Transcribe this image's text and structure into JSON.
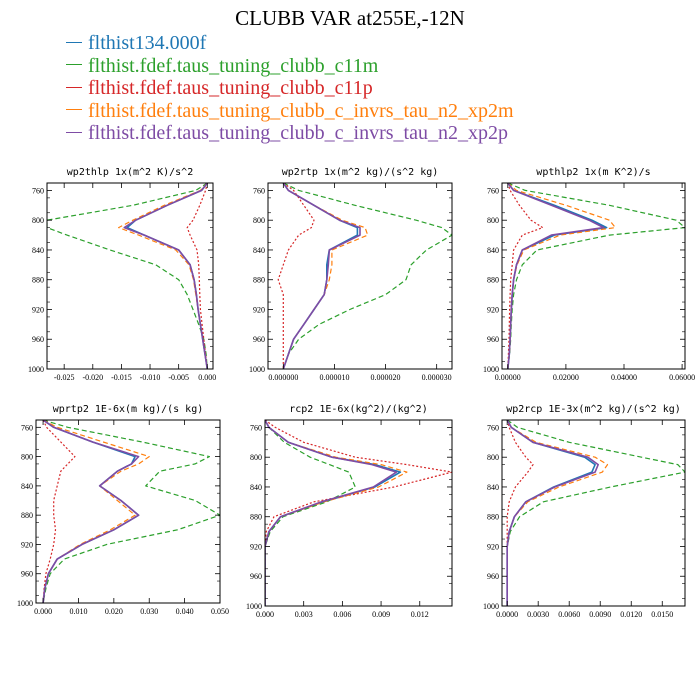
{
  "title": "CLUBB VAR at255E,-12N",
  "legend": [
    {
      "name": "flthist134.000f",
      "color": "#1f77b4"
    },
    {
      "name": "flthist.fdef.taus_tuning_clubb_c11m",
      "color": "#2ca02c"
    },
    {
      "name": "flthist.fdef.taus_tuning_clubb_c11p",
      "color": "#d62728"
    },
    {
      "name": "flthist.fdef.taus_tuning_clubb_c_invrs_tau_n2_xp2m",
      "color": "#ff7f0e"
    },
    {
      "name": "flthist.fdef.taus_tuning_clubb_c_invrs_tau_n2_xp2p",
      "color": "#7e4ca5"
    }
  ],
  "y_ticks": [
    "760",
    "800",
    "840",
    "880",
    "920",
    "960",
    "1000"
  ],
  "chart_data": [
    {
      "type": "line",
      "title": "wp2thlp  1x(m^2 K)/s^2",
      "xlim": [
        -0.028,
        0.001
      ],
      "ylim": [
        1000,
        750
      ],
      "y_reversed": true,
      "x_ticks": [
        -0.025,
        -0.02,
        -0.015,
        -0.01,
        -0.005,
        0.0
      ],
      "x_tick_labels": [
        "-0.025",
        "-0.020",
        "-0.015",
        "-0.010",
        "-0.005",
        "0.000"
      ],
      "y": [
        750,
        760,
        780,
        800,
        810,
        820,
        840,
        860,
        880,
        900,
        920,
        940,
        960,
        980,
        1000
      ],
      "series": [
        {
          "name": "flthist134.000f",
          "values": [
            0.0,
            -0.001,
            -0.007,
            -0.0125,
            -0.014,
            -0.011,
            -0.005,
            -0.003,
            -0.0023,
            -0.0019,
            -0.0016,
            -0.0012,
            -0.0008,
            -0.0004,
            0.0
          ]
        },
        {
          "name": "flthist.fdef.taus_tuning_clubb_c11m",
          "values": [
            0.0,
            -0.002,
            -0.013,
            -0.028,
            -0.028,
            -0.0245,
            -0.017,
            -0.009,
            -0.005,
            -0.0035,
            -0.0025,
            -0.0015,
            -0.0006,
            -0.0002,
            0.0
          ]
        },
        {
          "name": "flthist.fdef.taus_tuning_clubb_c11p",
          "values": [
            0.0,
            -0.0003,
            -0.0013,
            -0.0025,
            -0.0035,
            -0.003,
            -0.0018,
            -0.0015,
            -0.0014,
            -0.0013,
            -0.0012,
            -0.0009,
            -0.0006,
            -0.0003,
            0.0
          ]
        },
        {
          "name": "flthist.fdef.taus_tuning_clubb_c_invrs_tau_n2_xp2m",
          "values": [
            0.0,
            -0.0012,
            -0.0075,
            -0.013,
            -0.0155,
            -0.012,
            -0.0055,
            -0.0032,
            -0.0024,
            -0.002,
            -0.0016,
            -0.0012,
            -0.0008,
            -0.0004,
            0.0
          ]
        },
        {
          "name": "flthist.fdef.taus_tuning_clubb_c_invrs_tau_n2_xp2p",
          "values": [
            0.0,
            -0.001,
            -0.007,
            -0.0125,
            -0.0145,
            -0.011,
            -0.005,
            -0.003,
            -0.0023,
            -0.0019,
            -0.0016,
            -0.0012,
            -0.0008,
            -0.0004,
            0.0
          ]
        }
      ]
    },
    {
      "type": "line",
      "title": "wp2rtp  1x(m^2 kg)/(s^2 kg)",
      "xlim": [
        -3e-06,
        3.3e-05
      ],
      "ylim": [
        1000,
        750
      ],
      "y_reversed": true,
      "x_ticks": [
        0.0,
        1e-05,
        2e-05,
        3e-05
      ],
      "x_tick_labels": [
        "0.000000",
        "0.000010",
        "0.000020",
        "0.000030"
      ],
      "y": [
        750,
        760,
        780,
        800,
        810,
        820,
        840,
        860,
        880,
        900,
        920,
        940,
        960,
        980,
        1000
      ],
      "series": [
        {
          "name": "flthist134.000f",
          "values": [
            0.0,
            1e-06,
            6e-06,
            1.1e-05,
            1.45e-05,
            1.45e-05,
            9e-06,
            8.5e-06,
            8.5e-06,
            8e-06,
            6e-06,
            4e-06,
            2e-06,
            1e-06,
            0.0
          ]
        },
        {
          "name": "flthist.fdef.taus_tuning_clubb_c11m",
          "values": [
            0.0,
            3e-06,
            1.4e-05,
            2.6e-05,
            3.1e-05,
            3.3e-05,
            2.8e-05,
            2.5e-05,
            2.4e-05,
            2e-05,
            1.3e-05,
            7e-06,
            3e-06,
            1e-06,
            0.0
          ]
        },
        {
          "name": "flthist.fdef.taus_tuning_clubb_c11p",
          "values": [
            0.0,
            2e-06,
            4e-06,
            6e-06,
            5.5e-06,
            3e-06,
            1e-06,
            0.0,
            -1e-06,
            0.0,
            0.0,
            0.0,
            0.0,
            0.0,
            0.0
          ]
        },
        {
          "name": "flthist.fdef.taus_tuning_clubb_c_invrs_tau_n2_xp2m",
          "values": [
            0.0,
            1e-06,
            6e-06,
            1.15e-05,
            1.6e-05,
            1.65e-05,
            9.5e-06,
            9.5e-06,
            9e-06,
            8e-06,
            6e-06,
            4e-06,
            2e-06,
            1e-06,
            0.0
          ]
        },
        {
          "name": "flthist.fdef.taus_tuning_clubb_c_invrs_tau_n2_xp2p",
          "values": [
            0.0,
            1e-06,
            6e-06,
            1.1e-05,
            1.5e-05,
            1.5e-05,
            9e-06,
            8.8e-06,
            8.5e-06,
            8e-06,
            6e-06,
            4e-06,
            2e-06,
            1e-06,
            0.0
          ]
        }
      ]
    },
    {
      "type": "line",
      "title": "wpthlp2  1x(m K^2)/s",
      "xlim": [
        -0.002,
        0.061
      ],
      "ylim": [
        1000,
        750
      ],
      "y_reversed": true,
      "x_ticks": [
        0.0,
        0.02,
        0.04,
        0.06
      ],
      "x_tick_labels": [
        "0.00000",
        "0.02000",
        "0.04000",
        "0.06000"
      ],
      "y": [
        750,
        760,
        780,
        800,
        810,
        820,
        840,
        860,
        880,
        900,
        920,
        940,
        960,
        980,
        1000
      ],
      "series": [
        {
          "name": "flthist134.000f",
          "values": [
            0.0,
            0.002,
            0.016,
            0.029,
            0.034,
            0.016,
            0.005,
            0.003,
            0.002,
            0.0015,
            0.0012,
            0.001,
            0.0008,
            0.0005,
            0.0
          ]
        },
        {
          "name": "flthist.fdef.taus_tuning_clubb_c11m",
          "values": [
            0.0,
            0.006,
            0.035,
            0.058,
            0.061,
            0.035,
            0.01,
            0.005,
            0.003,
            0.002,
            0.0015,
            0.0012,
            0.001,
            0.0006,
            0.0
          ]
        },
        {
          "name": "flthist.fdef.taus_tuning_clubb_c11p",
          "values": [
            0.0,
            0.0008,
            0.004,
            0.008,
            0.012,
            0.005,
            0.002,
            0.0015,
            0.001,
            0.0008,
            0.0006,
            0.0005,
            0.0004,
            0.0002,
            0.0
          ]
        },
        {
          "name": "flthist.fdef.taus_tuning_clubb_c_invrs_tau_n2_xp2m",
          "values": [
            0.0,
            0.003,
            0.02,
            0.035,
            0.037,
            0.018,
            0.0055,
            0.0032,
            0.002,
            0.0015,
            0.0012,
            0.001,
            0.0008,
            0.0005,
            0.0
          ]
        },
        {
          "name": "flthist.fdef.taus_tuning_clubb_c_invrs_tau_n2_xp2p",
          "values": [
            0.0,
            0.002,
            0.015,
            0.028,
            0.033,
            0.015,
            0.005,
            0.003,
            0.002,
            0.0015,
            0.0012,
            0.001,
            0.0008,
            0.0005,
            0.0
          ]
        }
      ]
    },
    {
      "type": "line",
      "title": "wprtp2  1E-6x(m kg)/(s kg)",
      "xlim": [
        -0.002,
        0.05
      ],
      "ylim": [
        1000,
        750
      ],
      "y_reversed": true,
      "x_ticks": [
        0.0,
        0.01,
        0.02,
        0.03,
        0.04,
        0.05
      ],
      "x_tick_labels": [
        "0.000",
        "0.010",
        "0.020",
        "0.030",
        "0.040",
        "0.050"
      ],
      "y": [
        750,
        760,
        780,
        800,
        810,
        820,
        840,
        860,
        880,
        900,
        920,
        940,
        960,
        980,
        1000
      ],
      "series": [
        {
          "name": "flthist134.000f",
          "values": [
            0.0,
            0.003,
            0.014,
            0.026,
            0.025,
            0.021,
            0.016,
            0.022,
            0.027,
            0.02,
            0.011,
            0.004,
            0.0015,
            0.0005,
            0.0
          ]
        },
        {
          "name": "flthist.fdef.taus_tuning_clubb_c11m",
          "values": [
            0.0,
            0.007,
            0.028,
            0.047,
            0.043,
            0.033,
            0.029,
            0.043,
            0.05,
            0.038,
            0.018,
            0.006,
            0.002,
            0.0008,
            0.0
          ]
        },
        {
          "name": "flthist.fdef.taus_tuning_clubb_c11p",
          "values": [
            0.0,
            0.001,
            0.005,
            0.009,
            0.007,
            0.005,
            0.004,
            0.003,
            0.003,
            0.0035,
            0.003,
            0.002,
            0.0008,
            0.0003,
            0.0
          ]
        },
        {
          "name": "flthist.fdef.taus_tuning_clubb_c_invrs_tau_n2_xp2m",
          "values": [
            0.0,
            0.004,
            0.017,
            0.03,
            0.027,
            0.022,
            0.016,
            0.021,
            0.026,
            0.019,
            0.0105,
            0.004,
            0.0015,
            0.0005,
            0.0
          ]
        },
        {
          "name": "flthist.fdef.taus_tuning_clubb_c_invrs_tau_n2_xp2p",
          "values": [
            0.0,
            0.003,
            0.014,
            0.027,
            0.025,
            0.021,
            0.016,
            0.022,
            0.027,
            0.02,
            0.011,
            0.004,
            0.0015,
            0.0005,
            0.0
          ]
        }
      ]
    },
    {
      "type": "line",
      "title": "rcp2  1E-6x(kg^2)/(kg^2)",
      "xlim": [
        0.0,
        0.0145
      ],
      "ylim": [
        1000,
        750
      ],
      "y_reversed": true,
      "x_ticks": [
        0.0,
        0.003,
        0.006,
        0.009,
        0.012
      ],
      "x_tick_labels": [
        "0.000",
        "0.003",
        "0.006",
        "0.009",
        "0.012"
      ],
      "y": [
        750,
        760,
        780,
        800,
        810,
        820,
        840,
        860,
        880,
        900,
        920,
        940,
        960,
        980,
        1000
      ],
      "series": [
        {
          "name": "flthist134.000f",
          "values": [
            0.0,
            0.0003,
            0.0018,
            0.0052,
            0.0085,
            0.0105,
            0.0085,
            0.0045,
            0.0012,
            0.0003,
            0.0,
            0.0,
            0.0,
            0.0,
            0.0
          ]
        },
        {
          "name": "flthist.fdef.taus_tuning_clubb_c11m",
          "values": [
            0.0,
            0.0003,
            0.0015,
            0.0035,
            0.005,
            0.0065,
            0.007,
            0.0048,
            0.0014,
            0.0004,
            0.0,
            0.0,
            0.0,
            0.0,
            0.0
          ]
        },
        {
          "name": "flthist.fdef.taus_tuning_clubb_c11p",
          "values": [
            0.0,
            0.0008,
            0.003,
            0.007,
            0.011,
            0.0145,
            0.01,
            0.0038,
            0.0007,
            0.0001,
            0.0,
            0.0,
            0.0,
            0.0,
            0.0
          ]
        },
        {
          "name": "flthist.fdef.taus_tuning_clubb_c_invrs_tau_n2_xp2m",
          "values": [
            0.0,
            0.0003,
            0.0018,
            0.0055,
            0.009,
            0.011,
            0.0088,
            0.0046,
            0.0012,
            0.0003,
            0.0,
            0.0,
            0.0,
            0.0,
            0.0
          ]
        },
        {
          "name": "flthist.fdef.taus_tuning_clubb_c_invrs_tau_n2_xp2p",
          "values": [
            0.0,
            0.0003,
            0.0018,
            0.0052,
            0.0083,
            0.0102,
            0.0084,
            0.0044,
            0.0012,
            0.0003,
            0.0,
            0.0,
            0.0,
            0.0,
            0.0
          ]
        }
      ]
    },
    {
      "type": "line",
      "title": "wp2rcp  1E-3x(m^2 kg)/(s^2 kg)",
      "xlim": [
        -0.0005,
        0.0172
      ],
      "ylim": [
        1000,
        750
      ],
      "y_reversed": true,
      "x_ticks": [
        0.0,
        0.003,
        0.006,
        0.009,
        0.012,
        0.015
      ],
      "x_tick_labels": [
        "0.0000",
        "0.0030",
        "0.0060",
        "0.0090",
        "0.0120",
        "0.0150"
      ],
      "y": [
        750,
        760,
        780,
        800,
        810,
        820,
        840,
        860,
        880,
        900,
        920,
        940,
        960,
        980,
        1000
      ],
      "series": [
        {
          "name": "flthist134.000f",
          "values": [
            0.0,
            0.0004,
            0.0025,
            0.0075,
            0.0085,
            0.0082,
            0.0045,
            0.0018,
            0.0007,
            0.0002,
            0.0,
            0.0,
            0.0,
            0.0,
            0.0
          ]
        },
        {
          "name": "flthist.fdef.taus_tuning_clubb_c11m",
          "values": [
            0.0,
            0.001,
            0.006,
            0.013,
            0.0165,
            0.0172,
            0.01,
            0.0035,
            0.0012,
            0.0003,
            0.0,
            0.0,
            0.0,
            0.0,
            0.0
          ]
        },
        {
          "name": "flthist.fdef.taus_tuning_clubb_c11p",
          "values": [
            0.0,
            0.0002,
            0.0008,
            0.0018,
            0.0025,
            0.002,
            0.0008,
            0.0002,
            0.0,
            0.0,
            0.0,
            0.0,
            0.0,
            0.0,
            0.0
          ]
        },
        {
          "name": "flthist.fdef.taus_tuning_clubb_c_invrs_tau_n2_xp2m",
          "values": [
            0.0,
            0.0004,
            0.0028,
            0.0085,
            0.0097,
            0.0092,
            0.005,
            0.002,
            0.0007,
            0.0002,
            0.0,
            0.0,
            0.0,
            0.0,
            0.0
          ]
        },
        {
          "name": "flthist.fdef.taus_tuning_clubb_c_invrs_tau_n2_xp2p",
          "values": [
            0.0,
            0.0004,
            0.0025,
            0.0078,
            0.0088,
            0.0085,
            0.0046,
            0.0018,
            0.0007,
            0.0002,
            0.0,
            0.0,
            0.0,
            0.0,
            0.0
          ]
        }
      ]
    }
  ]
}
